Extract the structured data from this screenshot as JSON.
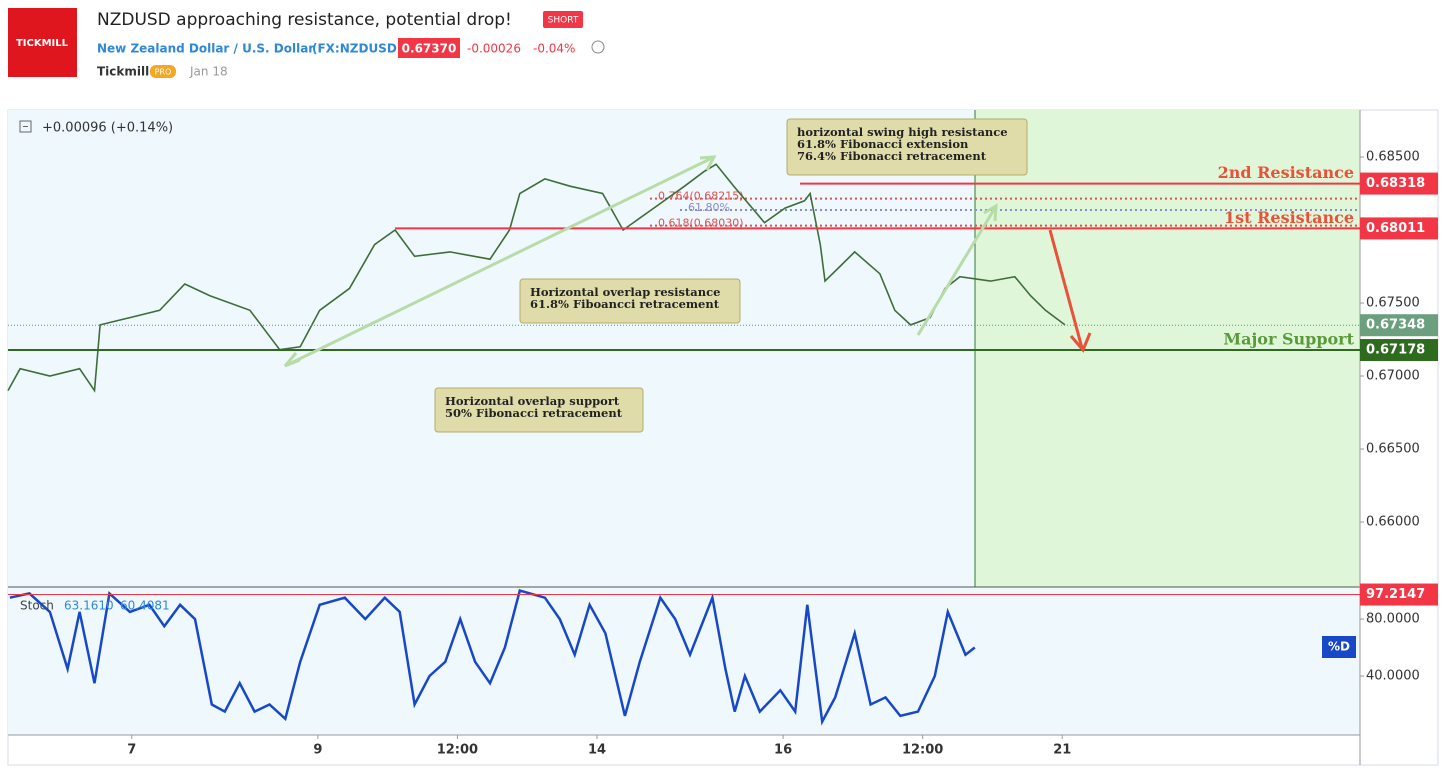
{
  "header": {
    "logo": "TICKMILL",
    "title": "NZDUSD approaching resistance, potential drop!",
    "badge": "SHORT",
    "symbol_name": "New Zealand Dollar / U.S. Dollar",
    "symbol": "(FX:NZDUSD)",
    "price": "0.67370",
    "change": "-0.00026",
    "change_pct": "-0.04%",
    "author": "Tickmill",
    "author_badge": "PRO",
    "date": "Jan 18"
  },
  "chart_data": [
    {
      "type": "line",
      "change_readout": "+0.00096 (+0.14%)",
      "x": [
        -1.33,
        -1.2,
        -0.88,
        -0.56,
        -0.4,
        -0.34,
        -0.02,
        0.3,
        0.57,
        0.84,
        1.27,
        1.59,
        1.81,
        2.02,
        2.34,
        2.61,
        2.83,
        3.04,
        3.42,
        3.85,
        4.06,
        4.17,
        4.44,
        4.71,
        5.06,
        5.28,
        5.61,
        5.94,
        6.15,
        6.28,
        6.47,
        6.8,
        7.02,
        7.23,
        7.29,
        7.4,
        7.45,
        7.61,
        7.77,
        8.04,
        8.2,
        8.37,
        8.58,
        8.74,
        8.9,
        9.23,
        9.49,
        9.66,
        9.82,
        10.03
      ],
      "series": [
        {
          "color": "#3f6e3a",
          "values": [
            0.669,
            0.6705,
            0.67,
            0.6705,
            0.669,
            0.6735,
            0.674,
            0.6745,
            0.6763,
            0.6755,
            0.6745,
            0.6718,
            0.672,
            0.6745,
            0.676,
            0.679,
            0.68,
            0.6782,
            0.6785,
            0.678,
            0.68,
            0.6825,
            0.6835,
            0.683,
            0.6825,
            0.68,
            0.6815,
            0.683,
            0.684,
            0.6845,
            0.683,
            0.6805,
            0.6815,
            0.682,
            0.6825,
            0.679,
            0.6765,
            0.6775,
            0.6785,
            0.677,
            0.6745,
            0.6735,
            0.674,
            0.676,
            0.6768,
            0.6765,
            0.6768,
            0.6755,
            0.6745,
            0.6735
          ]
        }
      ],
      "xlim": [
        -1.33,
        13.2
      ],
      "ylim": [
        0.65555,
        0.68822
      ],
      "yticks": [
        {
          "value": 0.66,
          "label": "0.66000"
        },
        {
          "value": 0.665,
          "label": "0.66500"
        },
        {
          "value": 0.67,
          "label": "0.67000"
        },
        {
          "value": 0.675,
          "label": "0.67500"
        },
        {
          "value": 0.68,
          "label": "0.68000"
        },
        {
          "value": 0.685,
          "label": "0.68500"
        }
      ],
      "levels": [
        {
          "name": "2nd Resistance",
          "value": 0.68318,
          "color": "#f23645",
          "tag_color": "#f23645"
        },
        {
          "name": "1st Resistance",
          "value": 0.68011,
          "color": "#f23645",
          "tag_color": "#f23645"
        },
        {
          "value": 0.67348,
          "color": "#4f9a8a",
          "tag_color": "#6b9f7e"
        },
        {
          "name": "Major Support",
          "value": 0.67178,
          "color": "#2e6b1e",
          "tag_color": "#2e6b1e"
        }
      ],
      "fib_lines": [
        {
          "label": "0.764(0.68215)",
          "value": 0.68215,
          "color": "#e05050"
        },
        {
          "label": "61.80%",
          "value": 0.68137,
          "color": "#8a8ad0"
        },
        {
          "label": "0.618(0.68030)",
          "value": 0.6803,
          "color": "#e05050"
        }
      ],
      "annotations": [
        {
          "text": [
            "horizontal swing high resistance",
            "61.8% Fibonacci extension",
            "76.4% Fibonacci retracement"
          ]
        },
        {
          "text": [
            "Horizontal overlap resistance",
            "61.8% Fiboancci retracement"
          ]
        },
        {
          "text": [
            "Horizontal overlap support",
            "50% Fibonacci retracement"
          ]
        }
      ]
    },
    {
      "type": "line",
      "title": "Stoch",
      "readout": [
        {
          "value": 63.161,
          "label": "63.1610"
        },
        {
          "value": 60.4081,
          "label": "60.4081"
        }
      ],
      "x": [
        -1.31,
        -1.1,
        -0.88,
        -0.69,
        -0.56,
        -0.4,
        -0.24,
        -0.02,
        0.19,
        0.35,
        0.52,
        0.68,
        0.86,
        1.0,
        1.16,
        1.32,
        1.48,
        1.65,
        1.81,
        2.02,
        2.29,
        2.51,
        2.72,
        2.88,
        3.04,
        3.2,
        3.37,
        3.53,
        3.69,
        3.85,
        4.01,
        4.17,
        4.44,
        4.6,
        4.76,
        4.92,
        5.09,
        5.3,
        5.46,
        5.68,
        5.84,
        6.0,
        6.24,
        6.38,
        6.48,
        6.59,
        6.75,
        6.97,
        7.13,
        7.26,
        7.42,
        7.56,
        7.77,
        7.94,
        8.1,
        8.26,
        8.45,
        8.63,
        8.77,
        8.96,
        9.06
      ],
      "series": [
        {
          "name": "%D",
          "color": "#1848c8",
          "values": [
            95,
            98,
            85,
            45,
            85,
            35,
            98,
            85,
            90,
            75,
            90,
            80,
            20,
            15,
            35,
            15,
            20,
            10,
            50,
            90,
            95,
            80,
            95,
            85,
            20,
            40,
            50,
            80,
            50,
            35,
            60,
            100,
            95,
            80,
            55,
            90,
            70,
            12,
            50,
            95,
            80,
            55,
            95,
            45,
            15,
            40,
            15,
            30,
            15,
            90,
            8,
            25,
            70,
            20,
            25,
            12,
            15,
            40,
            85,
            55,
            60
          ]
        }
      ],
      "xlim": [
        -1.33,
        13.2
      ],
      "ylim": [
        -1.4,
        102.5
      ],
      "yticks": [
        {
          "value": 40,
          "label": "40.0000"
        },
        {
          "value": 80,
          "label": "80.0000"
        }
      ],
      "levels": [
        {
          "value": 97.2147,
          "color": "#f23645",
          "tag_color": "#f23645"
        }
      ],
      "xticks": [
        {
          "value": 0,
          "label": "7"
        },
        {
          "value": 2,
          "label": "9"
        },
        {
          "value": 3.5,
          "label": "12:00"
        },
        {
          "value": 5,
          "label": "14"
        },
        {
          "value": 7,
          "label": "16"
        },
        {
          "value": 8.5,
          "label": "12:00"
        },
        {
          "value": 10,
          "label": "21"
        }
      ]
    }
  ]
}
